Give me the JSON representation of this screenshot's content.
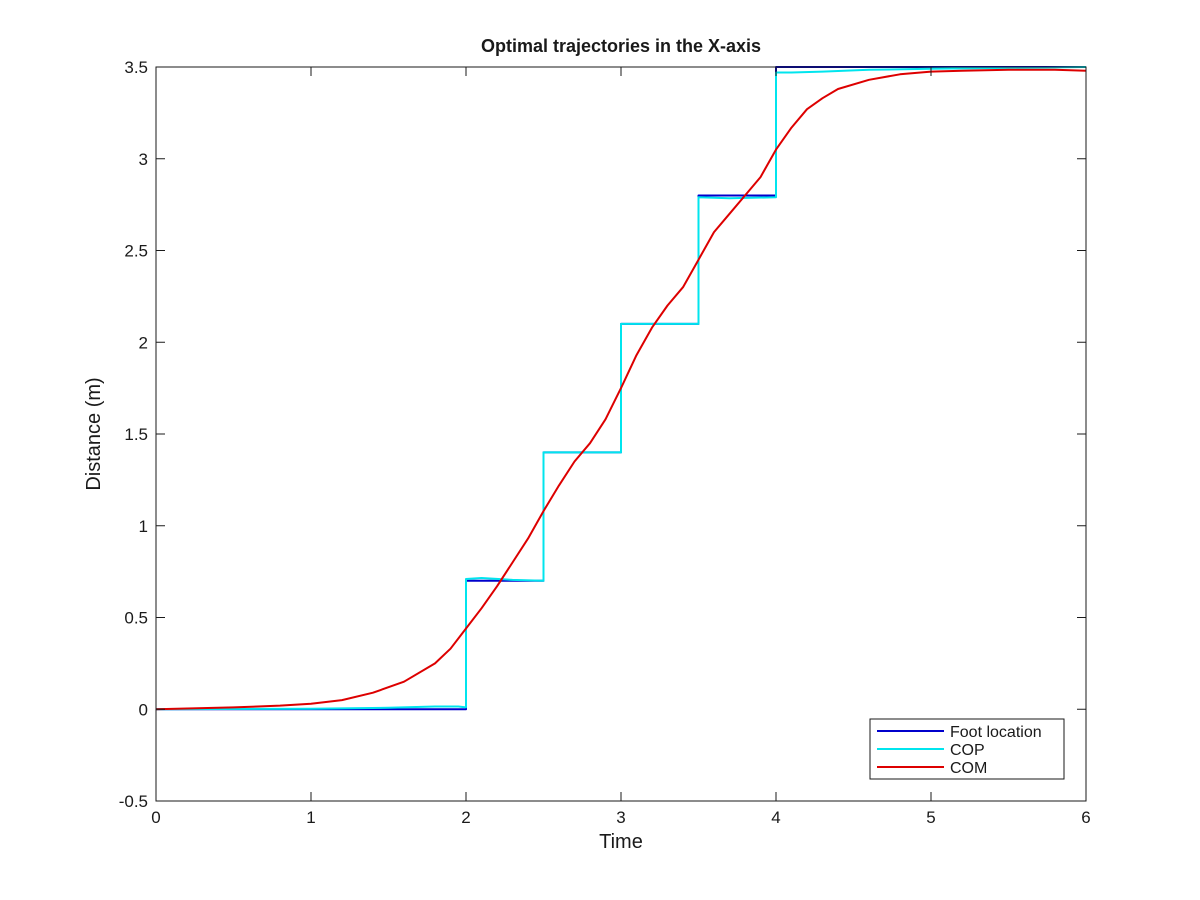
{
  "chart_data": {
    "type": "line",
    "title": "Optimal trajectories in the X-axis",
    "xlabel": "Time",
    "ylabel": "Distance (m)",
    "xlim": [
      0,
      6
    ],
    "ylim": [
      -0.5,
      3.5
    ],
    "xticks": [
      0,
      1,
      2,
      3,
      4,
      5,
      6
    ],
    "yticks": [
      -0.5,
      0,
      0.5,
      1,
      1.5,
      2,
      2.5,
      3,
      3.5
    ],
    "xtick_labels": [
      "0",
      "1",
      "2",
      "3",
      "4",
      "5",
      "6"
    ],
    "ytick_labels": [
      "-0.5",
      "0",
      "0.5",
      "1",
      "1.5",
      "2",
      "2.5",
      "3",
      "3.5"
    ],
    "grid": false,
    "legend_position": "bottom-right",
    "series": [
      {
        "name": "Foot location",
        "color": "#0000cc",
        "x": [
          0,
          2,
          2,
          2.5,
          2.5,
          3,
          3,
          3.5,
          3.5,
          4,
          4,
          6
        ],
        "y": [
          0,
          0,
          0.7,
          0.7,
          1.4,
          1.4,
          2.1,
          2.1,
          2.8,
          2.8,
          3.5,
          3.5
        ]
      },
      {
        "name": "COP",
        "color": "#00e5ee",
        "x": [
          0,
          1.0,
          1.5,
          1.8,
          1.95,
          2,
          2,
          2.1,
          2.3,
          2.5,
          2.5,
          3,
          3,
          3.5,
          3.5,
          3.7,
          4,
          4,
          4.1,
          4.3,
          4.6,
          5,
          6
        ],
        "y": [
          0,
          0.003,
          0.008,
          0.015,
          0.015,
          0.01,
          0.71,
          0.715,
          0.705,
          0.7,
          1.4,
          1.4,
          2.1,
          2.1,
          2.79,
          2.785,
          2.79,
          3.47,
          3.47,
          3.475,
          3.485,
          3.49,
          3.5
        ]
      },
      {
        "name": "COM",
        "color": "#dd0000",
        "x": [
          0,
          0.5,
          0.8,
          1.0,
          1.2,
          1.4,
          1.6,
          1.8,
          1.9,
          2.0,
          2.1,
          2.2,
          2.3,
          2.4,
          2.5,
          2.6,
          2.7,
          2.8,
          2.9,
          3.0,
          3.1,
          3.2,
          3.3,
          3.4,
          3.5,
          3.6,
          3.7,
          3.8,
          3.9,
          4.0,
          4.1,
          4.2,
          4.3,
          4.4,
          4.6,
          4.8,
          5.0,
          5.2,
          5.5,
          5.8,
          6.0
        ],
        "y": [
          0,
          0.01,
          0.02,
          0.03,
          0.05,
          0.09,
          0.15,
          0.25,
          0.33,
          0.44,
          0.55,
          0.67,
          0.8,
          0.93,
          1.08,
          1.22,
          1.35,
          1.45,
          1.58,
          1.75,
          1.93,
          2.08,
          2.2,
          2.3,
          2.45,
          2.6,
          2.7,
          2.8,
          2.9,
          3.05,
          3.17,
          3.27,
          3.33,
          3.38,
          3.43,
          3.46,
          3.475,
          3.48,
          3.485,
          3.485,
          3.48
        ]
      }
    ]
  }
}
